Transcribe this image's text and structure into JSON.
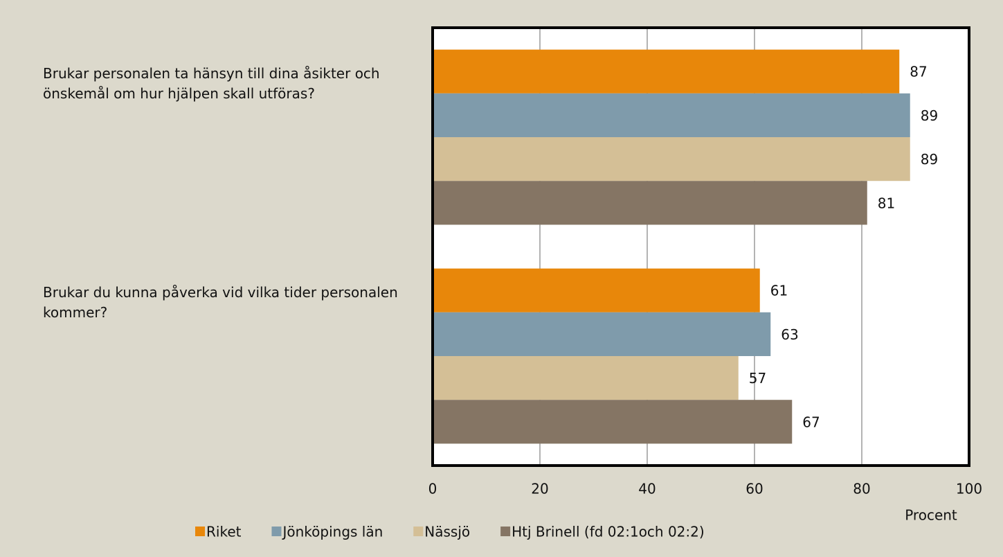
{
  "chart_data": {
    "type": "barh",
    "categories": [
      "Brukar personalen ta hänsyn till dina åsikter och önskemål om hur hjälpen skall utföras?",
      "Brukar du kunna påverka vid vilka tider personalen kommer?"
    ],
    "series": [
      {
        "name": "Riket",
        "color": "#e8870a",
        "values": [
          87,
          61
        ]
      },
      {
        "name": "Jönköpings län",
        "color": "#7f9bab",
        "values": [
          89,
          63
        ]
      },
      {
        "name": "Nässjö",
        "color": "#d4bf96",
        "values": [
          89,
          57
        ]
      },
      {
        "name": "Htj Brinell (fd 02:1och 02:2)",
        "color": "#857564",
        "values": [
          81,
          67
        ]
      }
    ],
    "xlim": [
      0,
      100
    ],
    "xticks": [
      0,
      20,
      40,
      60,
      80,
      100
    ],
    "x_label": "Procent",
    "grid": true,
    "legend": "bottom"
  }
}
